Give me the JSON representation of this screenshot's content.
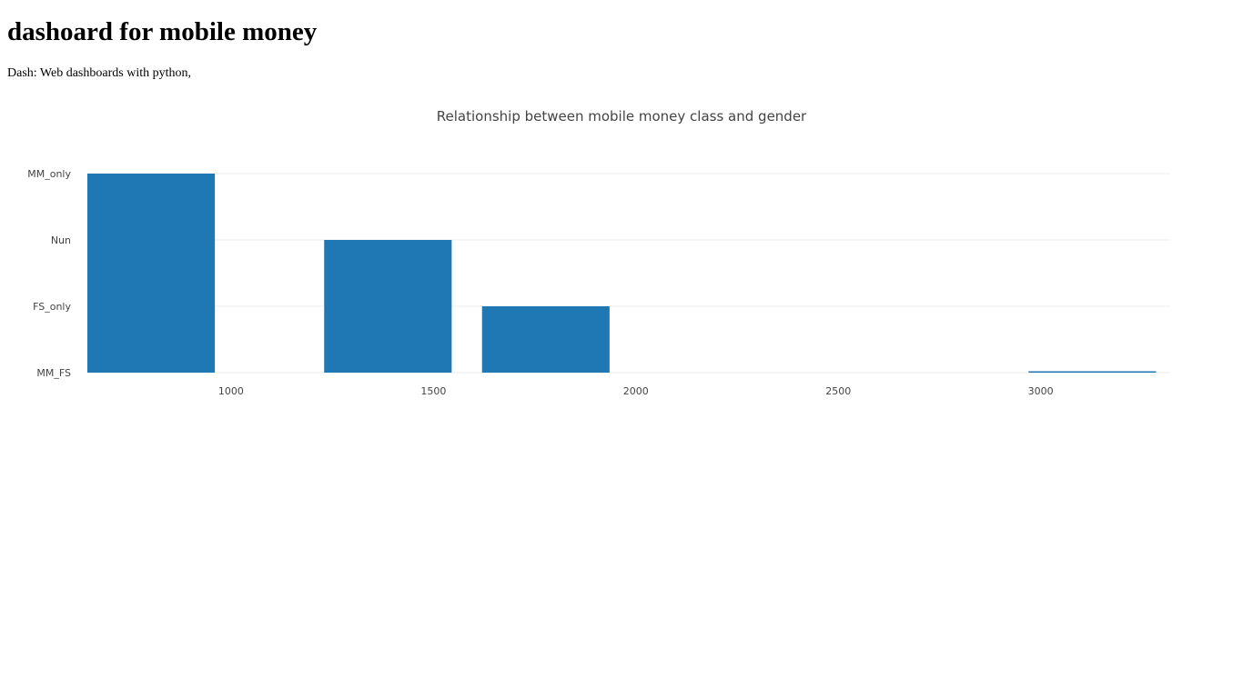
{
  "page": {
    "title": "dashoard for mobile money",
    "subtitle": "Dash: Web dashboards with python,"
  },
  "colors": {
    "bar": "#1f77b4",
    "grid": "#eeeeee",
    "tick_text": "#444444",
    "title_text": "#444444"
  },
  "chart_data": {
    "type": "bar",
    "orientation": "horizontal",
    "title": "Relationship between mobile money class and gender",
    "xlabel": "",
    "ylabel": "",
    "categories": [
      "MM_FS",
      "FS_only",
      "Nun",
      "MM_only"
    ],
    "xlim": [
      645,
      3320
    ],
    "x_ticks": [
      1000,
      1500,
      2000,
      2500,
      3000
    ],
    "grid": true,
    "legend": "none",
    "bars": [
      {
        "category": "MM_only",
        "x_start": 645,
        "x_end": 960,
        "level": 3
      },
      {
        "category": "Nun",
        "x_start": 1230,
        "x_end": 1545,
        "level": 2
      },
      {
        "category": "FS_only",
        "x_start": 1620,
        "x_end": 1935,
        "level": 1
      },
      {
        "category": "MM_FS",
        "x_start": 2970,
        "x_end": 3285,
        "level": 0
      }
    ]
  }
}
